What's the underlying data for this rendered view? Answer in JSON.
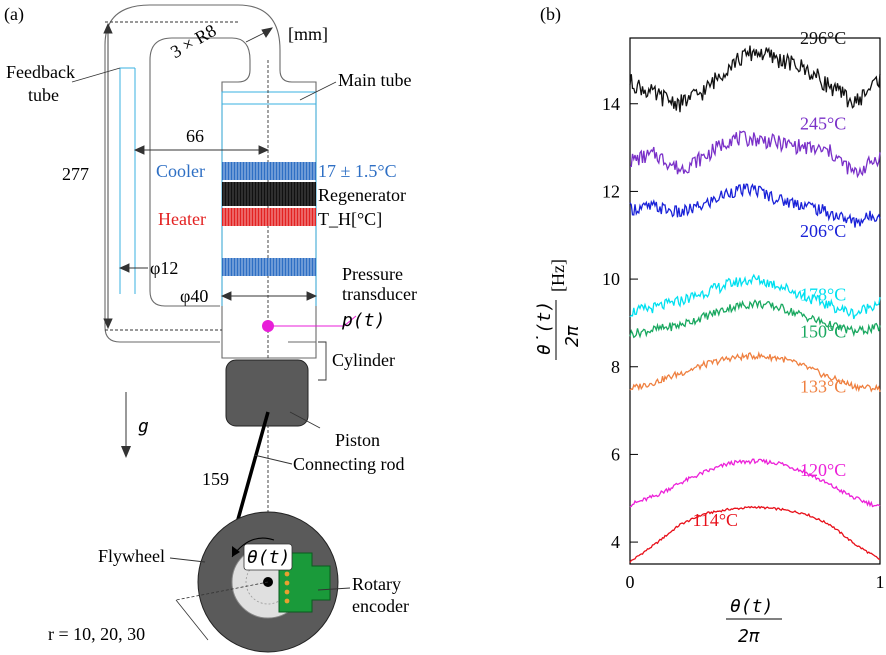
{
  "panel_a": {
    "label": "(a)",
    "unit": "[mm]",
    "radius": "3 × R8",
    "feedback_tube": [
      "Feedback",
      "tube"
    ],
    "main_tube": "Main tube",
    "length_66": "66",
    "length_277": "277",
    "cooler": "Cooler",
    "cooler_temp": "17 ± 1.5°C",
    "regenerator": "Regenerator",
    "heater": "Heater",
    "heater_temp": "T_H[°C]",
    "diam_12": "φ12",
    "diam_40": "φ40",
    "pressure": [
      "Pressure",
      "transducer"
    ],
    "pressure_sym": "p(t)",
    "cylinder": "Cylinder",
    "gravity": "g",
    "piston": "Piston",
    "rod_len": "159",
    "rod": "Connecting rod",
    "flywheel": "Flywheel",
    "theta": "θ(t)",
    "encoder": [
      "Rotary",
      "encoder"
    ],
    "r_values": "r = 10, 20, 30",
    "colors": {
      "cooler": "#2e6fc4",
      "heater": "#e32222",
      "regen": "#111111",
      "pressure": "#e81ed8",
      "encoder": "#1a9a3a",
      "dark": "#5a5a5a"
    }
  },
  "chart_data": {
    "type": "line",
    "panel_label": "(b)",
    "xlabel": "θ(t) / 2π",
    "ylabel": "θ̇(t) / 2π [Hz]",
    "xlim": [
      0,
      1
    ],
    "ylim": [
      3.5,
      15.5
    ],
    "xticks": [
      "0",
      "1"
    ],
    "yticks": [
      "4",
      "6",
      "8",
      "10",
      "12",
      "14"
    ],
    "series": [
      {
        "name": "114°C",
        "color": "#e8101a",
        "x": [
          0,
          0.1,
          0.2,
          0.3,
          0.4,
          0.5,
          0.6,
          0.7,
          0.8,
          0.9,
          1
        ],
        "values": [
          3.55,
          3.95,
          4.4,
          4.65,
          4.75,
          4.8,
          4.75,
          4.65,
          4.4,
          3.95,
          3.6
        ]
      },
      {
        "name": "120°C",
        "color": "#ec20d8",
        "x": [
          0,
          0.1,
          0.2,
          0.3,
          0.4,
          0.5,
          0.6,
          0.7,
          0.8,
          0.9,
          1
        ],
        "values": [
          4.85,
          5.05,
          5.35,
          5.6,
          5.8,
          5.85,
          5.8,
          5.6,
          5.3,
          5.0,
          4.8
        ]
      },
      {
        "name": "133°C",
        "color": "#ef8040",
        "x": [
          0,
          0.1,
          0.2,
          0.3,
          0.4,
          0.5,
          0.6,
          0.7,
          0.8,
          0.9,
          1
        ],
        "values": [
          7.5,
          7.65,
          7.85,
          8.05,
          8.2,
          8.25,
          8.2,
          8.0,
          7.75,
          7.55,
          7.5
        ]
      },
      {
        "name": "150°C",
        "color": "#1aa860",
        "x": [
          0,
          0.1,
          0.2,
          0.3,
          0.4,
          0.5,
          0.6,
          0.7,
          0.8,
          0.9,
          1
        ],
        "values": [
          8.75,
          8.85,
          8.95,
          9.15,
          9.35,
          9.45,
          9.35,
          9.15,
          8.95,
          8.8,
          8.9
        ]
      },
      {
        "name": "178°C",
        "color": "#00e0f0",
        "x": [
          0,
          0.1,
          0.2,
          0.3,
          0.4,
          0.5,
          0.6,
          0.7,
          0.8,
          0.9,
          1
        ],
        "values": [
          9.25,
          9.35,
          9.5,
          9.7,
          9.9,
          10.0,
          9.85,
          9.6,
          9.4,
          9.2,
          9.5
        ]
      },
      {
        "name": "206°C",
        "color": "#1a22d8",
        "x": [
          0,
          0.1,
          0.2,
          0.3,
          0.4,
          0.5,
          0.6,
          0.7,
          0.8,
          0.9,
          1
        ],
        "values": [
          11.6,
          11.65,
          11.5,
          11.7,
          12.0,
          12.05,
          11.8,
          11.7,
          11.5,
          11.3,
          11.5
        ]
      },
      {
        "name": "245°C",
        "color": "#7a30c8",
        "x": [
          0,
          0.1,
          0.2,
          0.3,
          0.4,
          0.5,
          0.6,
          0.7,
          0.8,
          0.9,
          1
        ],
        "values": [
          12.7,
          12.85,
          12.5,
          12.8,
          13.2,
          13.2,
          13.1,
          13.0,
          12.9,
          12.4,
          12.8
        ]
      },
      {
        "name": "296°C",
        "color": "#111111",
        "x": [
          0,
          0.1,
          0.2,
          0.3,
          0.4,
          0.5,
          0.6,
          0.7,
          0.8,
          0.9,
          1
        ],
        "values": [
          14.5,
          14.2,
          14.0,
          14.3,
          14.9,
          15.2,
          15.0,
          14.8,
          14.4,
          14.0,
          14.6
        ]
      }
    ]
  }
}
